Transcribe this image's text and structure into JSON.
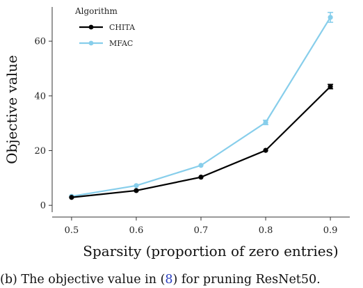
{
  "chart_data": {
    "type": "line",
    "title": "",
    "xlabel": "Sparsity (proportion of zero entries)",
    "ylabel": "Objective value",
    "x": [
      0.5,
      0.6,
      0.7,
      0.8,
      0.9
    ],
    "x_tick_labels": [
      "0.5",
      "0.6",
      "0.7",
      "0.8",
      "0.9"
    ],
    "y_ticks": [
      0,
      20,
      40,
      60
    ],
    "y_tick_labels": [
      "0",
      "20",
      "40",
      "60"
    ],
    "xlim": [
      0.47,
      0.93
    ],
    "ylim": [
      -2.5,
      72.5
    ],
    "grid": false,
    "legend": {
      "title": "Algorithm",
      "position": "top-left"
    },
    "series": [
      {
        "name": "CHITA",
        "color": "#000000",
        "values": [
          2.9,
          5.4,
          10.3,
          20.1,
          43.4
        ],
        "errors": [
          0.2,
          0.2,
          0.3,
          0.4,
          0.8
        ]
      },
      {
        "name": "MFAC",
        "color": "#87ceeb",
        "values": [
          3.3,
          7.2,
          14.6,
          30.3,
          68.7
        ],
        "errors": [
          0.2,
          0.2,
          0.3,
          0.8,
          1.8
        ]
      }
    ]
  },
  "caption": {
    "prefix": "(b)  The objective value in (",
    "ref": "8",
    "suffix": ") for pruning ResNet50."
  }
}
